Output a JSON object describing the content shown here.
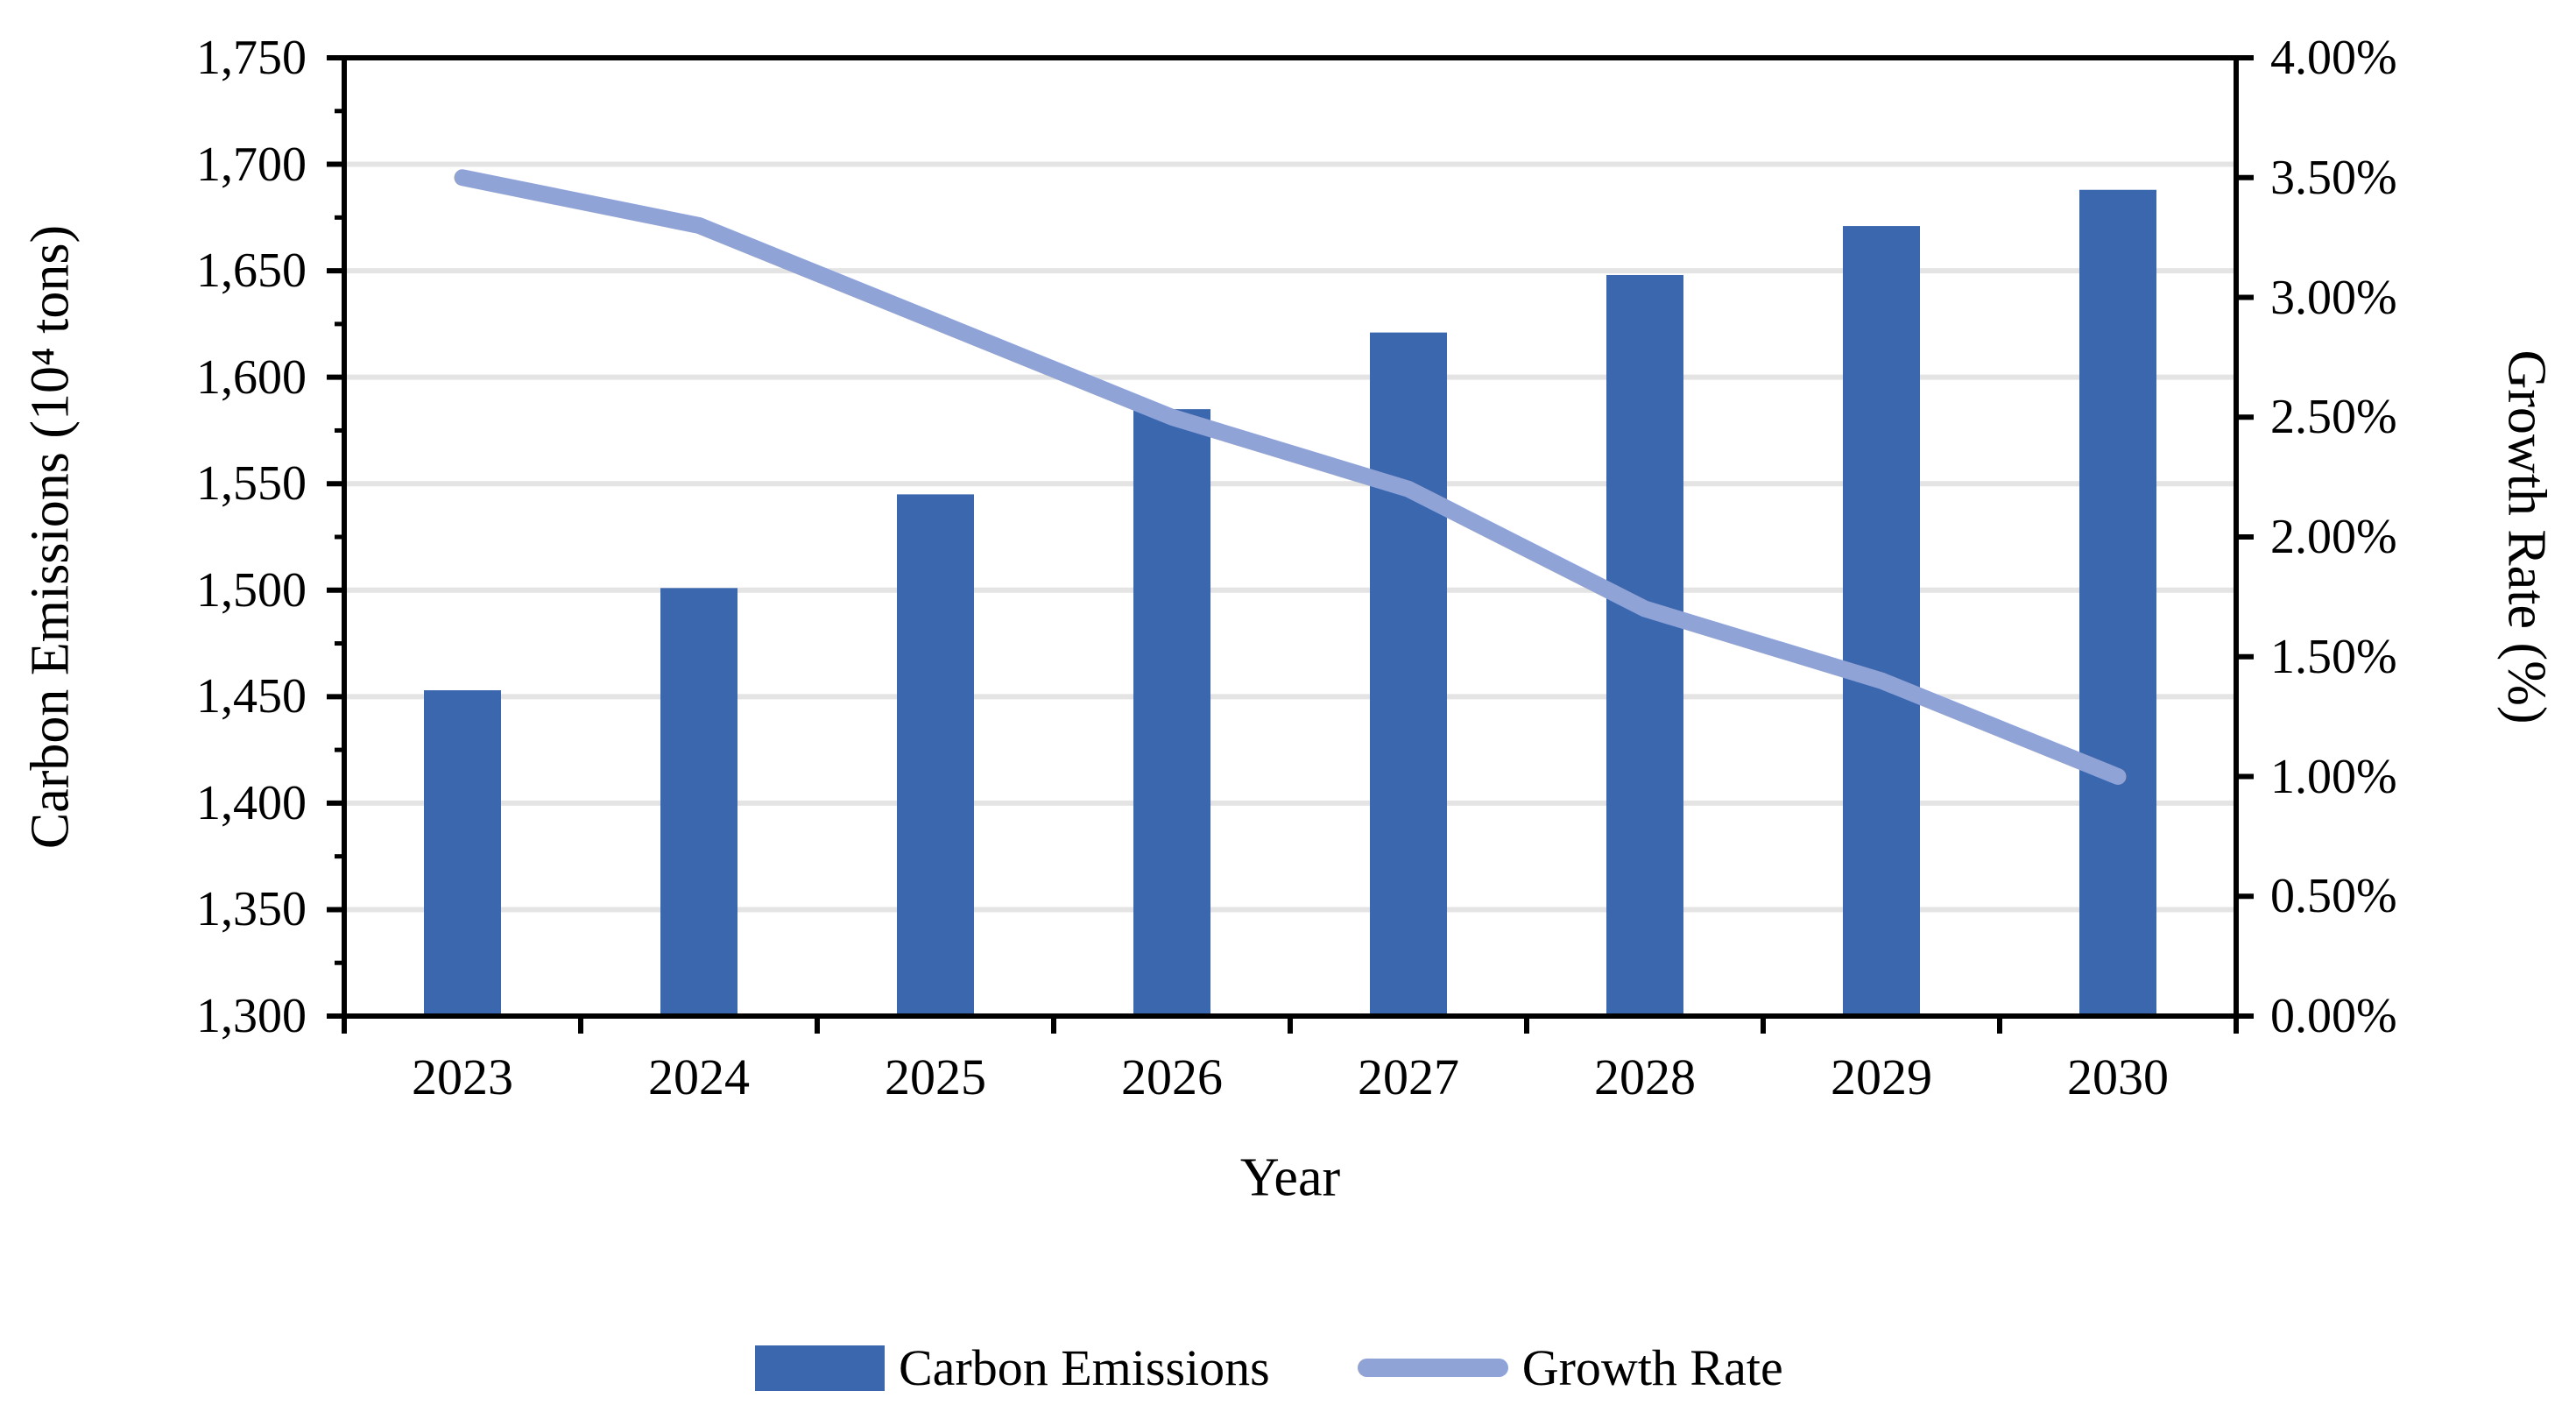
{
  "chart_data": {
    "type": "combo-bar-line",
    "categories": [
      "2023",
      "2024",
      "2025",
      "2026",
      "2027",
      "2028",
      "2029",
      "2030"
    ],
    "series": [
      {
        "name": "Carbon Emissions",
        "type": "bar",
        "axis": "left",
        "values": [
          1453,
          1501,
          1545,
          1585,
          1621,
          1648,
          1671,
          1688
        ]
      },
      {
        "name": "Growth Rate",
        "type": "line",
        "axis": "right",
        "values_percent": [
          3.5,
          3.3,
          2.9,
          2.5,
          2.2,
          1.7,
          1.4,
          1.0
        ]
      }
    ],
    "xlabel": "Year",
    "ylabel_left": "Carbon Emissions (10⁴ tons)",
    "ylabel_right": "Growth Rate (%)",
    "ylim_left": [
      1300,
      1750
    ],
    "ytick_step_left": 50,
    "y_left_tick_labels": [
      "1,750",
      "1,700",
      "1,650",
      "1,600",
      "1,550",
      "1,500",
      "1,450",
      "1,400",
      "1,350",
      "1,300"
    ],
    "ylim_right": [
      0,
      4
    ],
    "ytick_step_right": 0.5,
    "y_right_tick_labels": [
      "4.00%",
      "3.50%",
      "3.00%",
      "2.50%",
      "2.00%",
      "1.50%",
      "1.00%",
      "0.50%",
      "0.00%"
    ],
    "grid": "horizontal-major",
    "legend_position": "bottom",
    "colors": {
      "bar": "#3B67AE",
      "line": "#90A3D7",
      "gridline": "#E4E4E4",
      "axis": "#000000",
      "background": "#FFFFFF"
    }
  }
}
